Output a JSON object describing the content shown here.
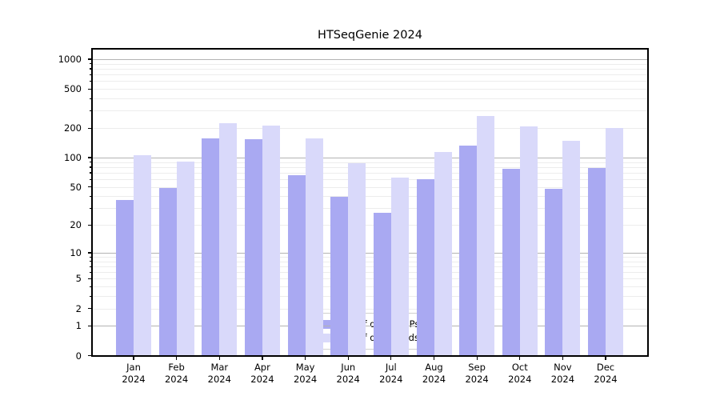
{
  "title": "HTSeqGenie 2024",
  "chart_data": {
    "type": "bar",
    "title": "HTSeqGenie 2024",
    "categories": [
      "Jan 2024",
      "Feb 2024",
      "Mar 2024",
      "Apr 2024",
      "May 2024",
      "Jun 2024",
      "Jul 2024",
      "Aug 2024",
      "Sep 2024",
      "Oct 2024",
      "Nov 2024",
      "Dec 2024"
    ],
    "series": [
      {
        "name": "Nb of distinct IPs",
        "color": "#a9a9f2",
        "values": [
          37,
          49,
          158,
          156,
          67,
          40,
          27,
          61,
          133,
          77,
          48,
          79
        ]
      },
      {
        "name": "Nb of downloads",
        "color": "#d9d9fa",
        "values": [
          106,
          92,
          228,
          215,
          158,
          89,
          63,
          115,
          268,
          210,
          151,
          202
        ]
      }
    ],
    "xlabel": "",
    "ylabel": "",
    "y_scale": "log1p",
    "ylim": [
      0,
      1300
    ],
    "y_ticks": [
      0,
      1,
      2,
      5,
      10,
      20,
      50,
      100,
      200,
      500,
      1000
    ],
    "grid": {
      "major_values": [
        1,
        10,
        100,
        1000
      ],
      "minor_values": [
        2,
        3,
        4,
        5,
        6,
        7,
        8,
        9,
        20,
        30,
        40,
        50,
        60,
        70,
        80,
        90,
        200,
        300,
        400,
        500,
        600,
        700,
        800,
        900
      ],
      "minor_tick_values": [
        3,
        4,
        6,
        7,
        8,
        9,
        30,
        40,
        60,
        70,
        80,
        90,
        300,
        400,
        600,
        700,
        800,
        900
      ]
    },
    "legend_position": "lower center",
    "colors": {
      "major_grid": "#b3b3b3",
      "minor_grid": "#ececec",
      "spine": "#000000",
      "background": "#ffffff"
    }
  }
}
